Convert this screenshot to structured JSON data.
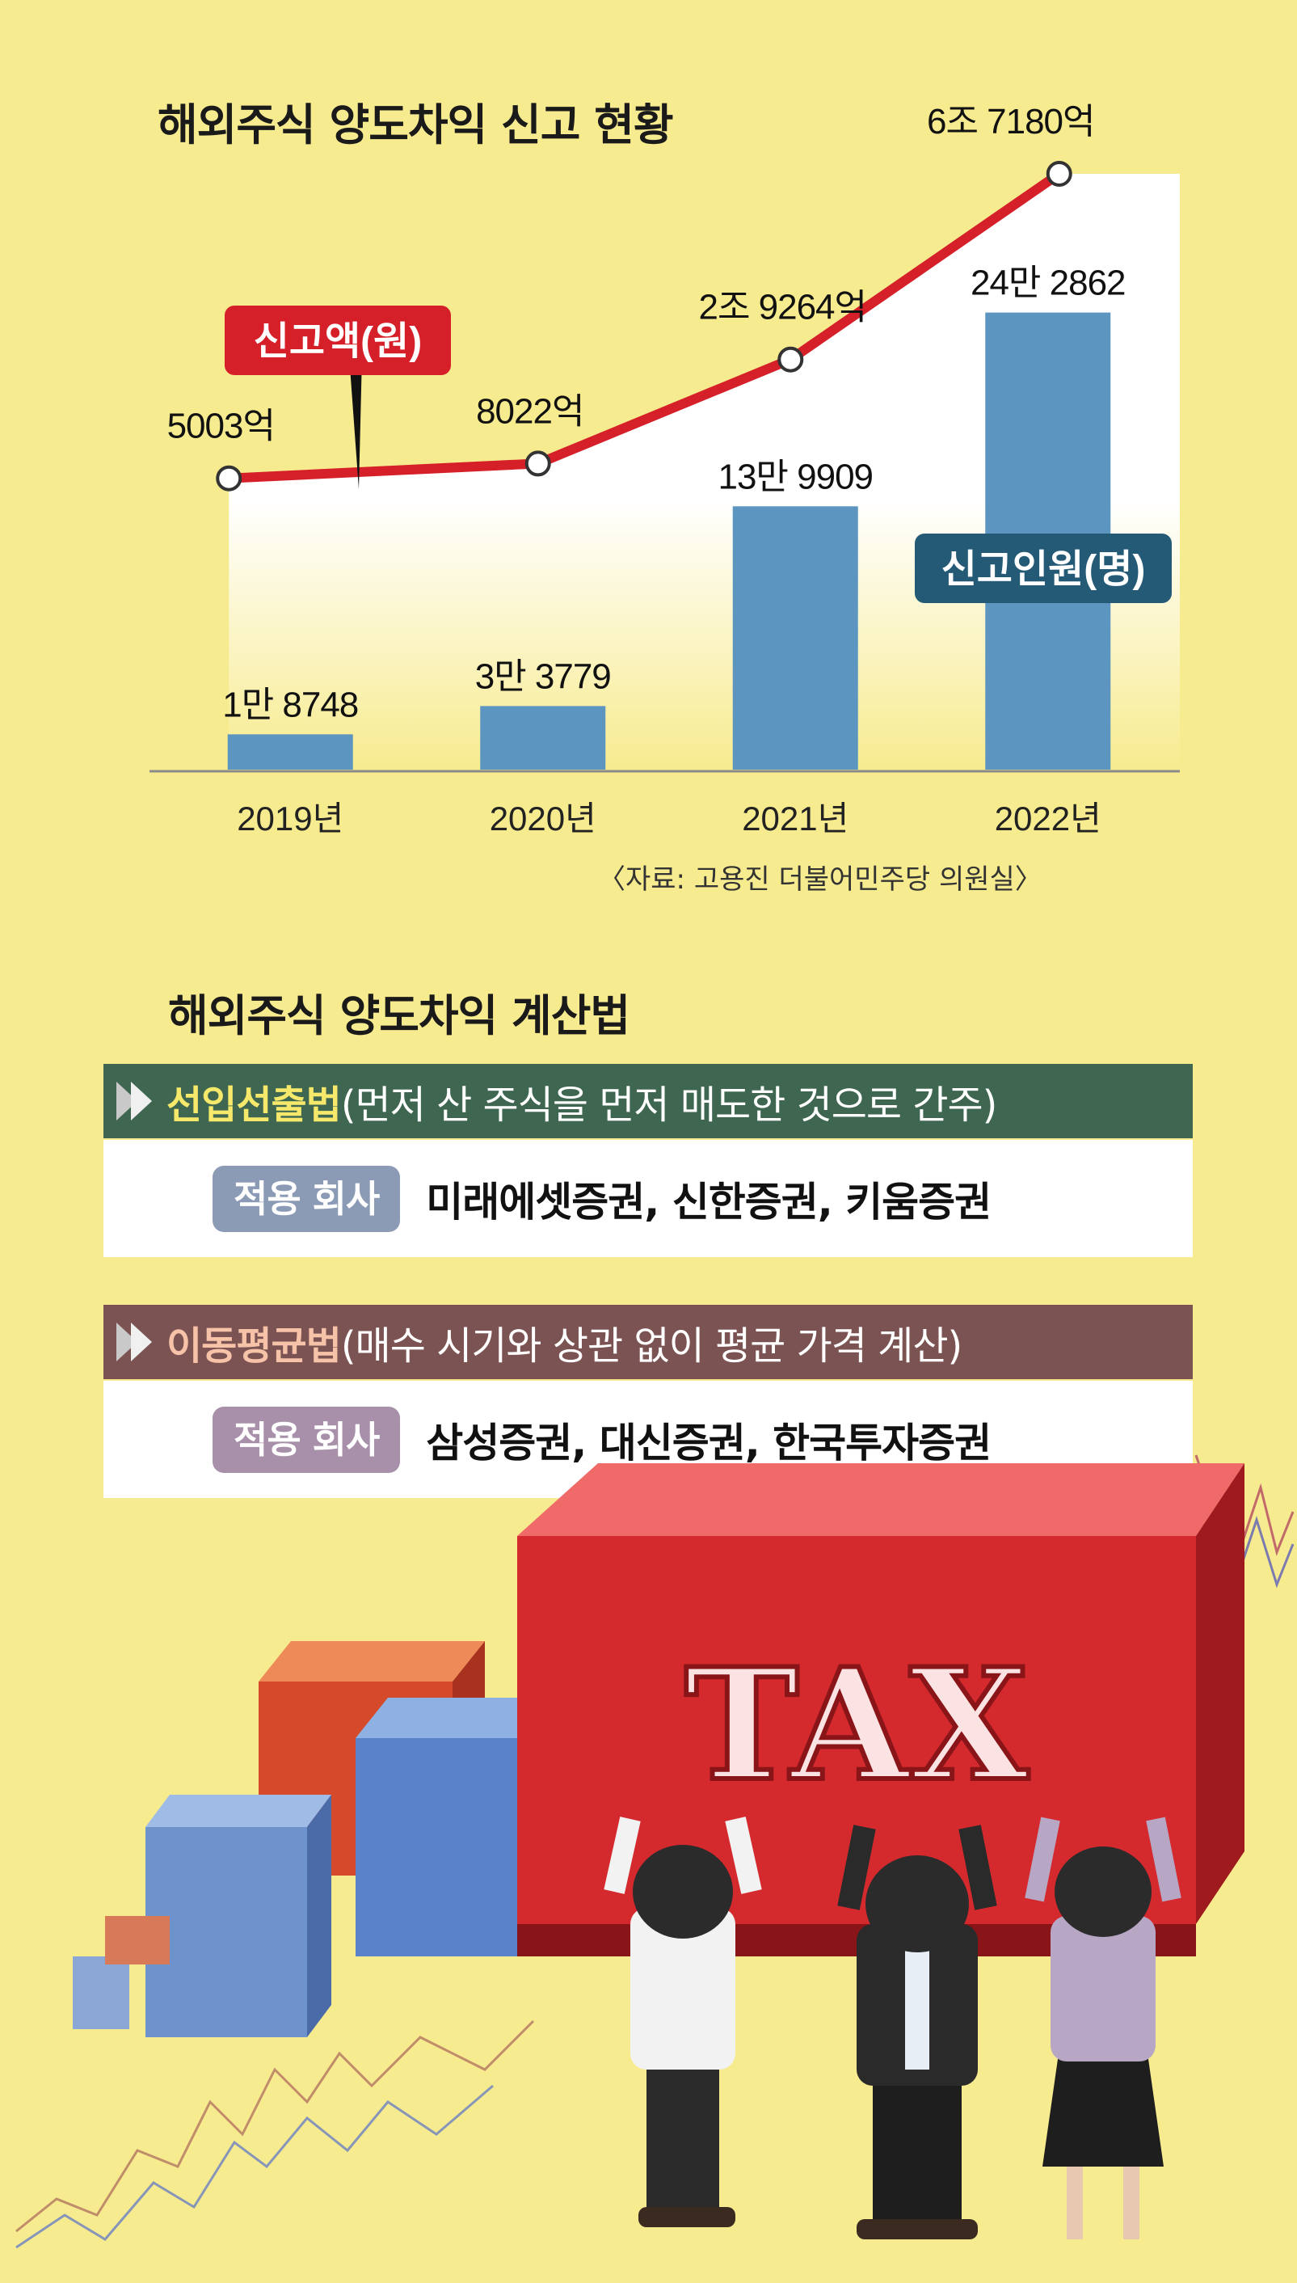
{
  "colors": {
    "background": "#f7eb8f",
    "amount_line": "#d5202a",
    "people_bar": "#5b95c0",
    "method1_header": "#3e6650",
    "method2_header": "#7a5352",
    "pill1": "#8c9bb5",
    "pill2": "#a88faa",
    "amount_label_bg": "#d5202a",
    "people_label_bg": "#245a76"
  },
  "chart_data": {
    "type": "bar+line",
    "title": "해외주식 양도차익 신고 현황",
    "categories": [
      "2019년",
      "2020년",
      "2021년",
      "2022년"
    ],
    "series": [
      {
        "name": "신고인원(명)",
        "kind": "bar",
        "values": [
          18748,
          33779,
          139909,
          242862
        ],
        "labels": [
          "1만 8748",
          "3만 3779",
          "13만 9909",
          "24만 2862"
        ]
      },
      {
        "name": "신고액(원)",
        "kind": "line",
        "values": [
          500300000000,
          802200000000,
          2926400000000,
          6718000000000
        ],
        "labels": [
          "5003억",
          "8022억",
          "2조 9264억",
          "6조 7180억"
        ]
      }
    ],
    "source": "〈자료: 고용진 더불어민주당 의원실〉"
  },
  "methods": {
    "title": "해외주식 양도차익 계산법",
    "items": [
      {
        "name": "선입선출법",
        "desc": "(먼저 산 주식을 먼저 매도한 것으로 간주)",
        "pill": "적용 회사",
        "companies": "미래에셋증권, 신한증권, 키움증권"
      },
      {
        "name": "이동평균법",
        "desc": "(매수 시기와 상관 없이 평균 가격 계산)",
        "pill": "적용 회사",
        "companies": "삼성증권, 대신증권, 한국투자증권"
      }
    ]
  },
  "illustration": {
    "box_text": "TAX"
  }
}
